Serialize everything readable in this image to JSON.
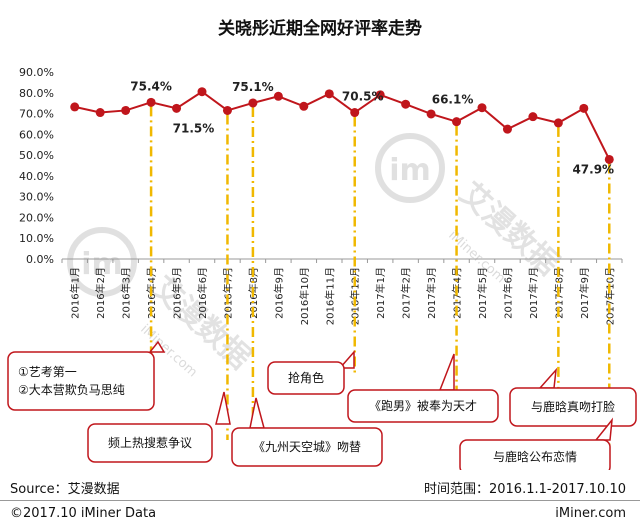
{
  "chart_data": {
    "type": "line",
    "title": "关晓彤近期全网好评率走势",
    "categories": [
      "2016年1月",
      "2016年2月",
      "2016年3月",
      "2016年4月",
      "2016年5月",
      "2016年6月",
      "2016年7月",
      "2016年8月",
      "2016年9月",
      "2016年10月",
      "2016年11月",
      "2016年12月",
      "2017年1月",
      "2017年2月",
      "2017年3月",
      "2017年4月",
      "2017年5月",
      "2017年6月",
      "2017年7月",
      "2017年8月",
      "2017年9月",
      "2017年10月"
    ],
    "values": [
      73.2,
      70.5,
      71.5,
      75.4,
      72.5,
      80.5,
      71.5,
      75.1,
      78.3,
      73.5,
      79.5,
      70.5,
      79.0,
      74.5,
      69.8,
      66.1,
      72.8,
      62.5,
      68.5,
      65.5,
      72.5,
      47.9
    ],
    "yticks": [
      "0.0%",
      "10.0%",
      "20.0%",
      "30.0%",
      "40.0%",
      "50.0%",
      "60.0%",
      "70.0%",
      "80.0%",
      "90.0%"
    ],
    "ylim": [
      0,
      90
    ],
    "line_color": "#c0161c",
    "marker_lines_color": "#f0b800",
    "data_labels": [
      {
        "index": 3,
        "text": "75.4%"
      },
      {
        "index": 6,
        "text": "71.5%"
      },
      {
        "index": 7,
        "text": "75.1%"
      },
      {
        "index": 11,
        "text": "70.5%"
      },
      {
        "index": 15,
        "text": "66.1%"
      },
      {
        "index": 21,
        "text": "47.9%"
      }
    ],
    "annotations": [
      {
        "index": 3,
        "lines": [
          "①艺考第一",
          "②大本营欺负马思纯"
        ]
      },
      {
        "index": 6,
        "lines": [
          "频上热搜惹争议"
        ]
      },
      {
        "index": 7,
        "lines": [
          "《九州天空城》吻替"
        ]
      },
      {
        "index": 11,
        "lines": [
          "抢角色"
        ]
      },
      {
        "index": 15,
        "lines": [
          "《跑男》被奉为天才"
        ]
      },
      {
        "index": 19,
        "lines": [
          "与鹿晗真吻打脸"
        ]
      },
      {
        "index": 21,
        "lines": [
          "与鹿晗公布恋情"
        ]
      }
    ]
  },
  "watermarks": {
    "brand_cn": "艾漫数据",
    "brand_en": "iMiner.com"
  },
  "footer": {
    "source": "Source：艾漫数据",
    "time_range": "时间范围：2016.1.1-2017.10.10",
    "copyright": "©2017.10 iMiner Data",
    "site": "iMiner.com"
  }
}
